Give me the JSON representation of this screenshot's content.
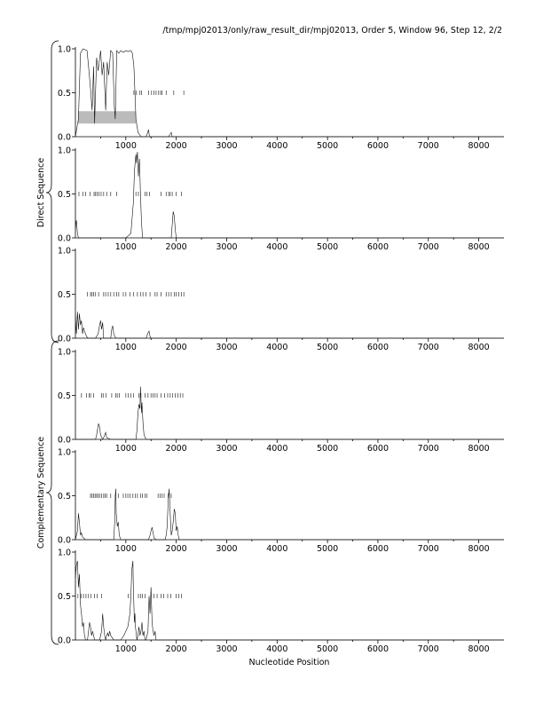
{
  "title": "/tmp/mpj02013/only/raw_result_dir/mpj02013, Order 5, Window 96, Step 12, 2/2",
  "xlabel": "Nucleotide Position",
  "group_labels": [
    "Direct Sequence",
    "Complementary Sequence"
  ],
  "chart_data": {
    "type": "line",
    "title": "/tmp/mpj02013/only/raw_result_dir/mpj02013, Order 5, Window 96, Step 12, 2/2",
    "xlabel": "Nucleotide Position",
    "xlim": [
      0,
      8500
    ],
    "ylim": [
      0,
      1
    ],
    "xticks": [
      1000,
      2000,
      3000,
      4000,
      5000,
      6000,
      7000,
      8000
    ],
    "yticks": [
      0.0,
      0.5,
      1.0
    ],
    "grid": false,
    "series": [
      {
        "group": "Direct Sequence",
        "x": [
          0,
          60,
          100,
          150,
          230,
          260,
          300,
          330,
          360,
          380,
          420,
          450,
          500,
          530,
          560,
          600,
          630,
          660,
          700,
          740,
          770,
          790,
          820,
          860,
          900,
          950,
          1000,
          1050,
          1100,
          1130,
          1160,
          1180,
          1200,
          1240,
          1300,
          1400,
          1430,
          1450,
          1470,
          1500,
          1850,
          1880,
          1900,
          1920,
          2200,
          8500
        ],
        "y": [
          0.0,
          0.2,
          0.95,
          1.0,
          0.98,
          0.8,
          0.55,
          0.3,
          0.8,
          0.15,
          0.9,
          0.75,
          0.98,
          0.7,
          0.85,
          0.3,
          0.85,
          0.7,
          0.98,
          0.95,
          0.35,
          0.2,
          0.98,
          0.95,
          0.98,
          0.96,
          0.98,
          0.97,
          0.98,
          0.95,
          0.8,
          0.5,
          0.2,
          0.05,
          0.0,
          0.0,
          0.04,
          0.08,
          0.0,
          0.0,
          0.0,
          0.03,
          0.05,
          0.0,
          0.0,
          0.0
        ],
        "stops": [
          1160,
          1210,
          1280,
          1310,
          1450,
          1510,
          1560,
          1600,
          1650,
          1690,
          1720,
          1800,
          1950,
          2150
        ],
        "gene_box": [
          50,
          1200,
          0.15,
          0.29
        ]
      },
      {
        "group": "Direct Sequence",
        "x": [
          0,
          20,
          40,
          60,
          1000,
          1100,
          1150,
          1170,
          1190,
          1200,
          1210,
          1230,
          1250,
          1270,
          1290,
          1310,
          1330,
          1400,
          1900,
          1920,
          1940,
          1960,
          1980,
          2000,
          8500
        ],
        "y": [
          0.1,
          0.2,
          0.05,
          0.0,
          0.0,
          0.05,
          0.4,
          0.75,
          0.9,
          0.95,
          0.85,
          0.98,
          0.7,
          0.9,
          0.5,
          0.2,
          0.0,
          0.0,
          0.0,
          0.15,
          0.3,
          0.25,
          0.1,
          0.0,
          0.0
        ],
        "stops": [
          70,
          150,
          200,
          290,
          370,
          400,
          430,
          470,
          510,
          560,
          620,
          700,
          820,
          1200,
          1250,
          1380,
          1420,
          1470,
          1700,
          1800,
          1850,
          1880,
          1920,
          2000,
          2100
        ]
      },
      {
        "group": "Direct Sequence",
        "x": [
          0,
          20,
          40,
          60,
          80,
          100,
          120,
          140,
          160,
          180,
          200,
          220,
          250,
          300,
          400,
          450,
          480,
          500,
          520,
          540,
          560,
          600,
          700,
          720,
          740,
          760,
          800,
          1000,
          1400,
          1420,
          1440,
          1460,
          1480,
          1500,
          8500
        ],
        "y": [
          0.25,
          0.05,
          0.3,
          0.1,
          0.28,
          0.15,
          0.2,
          0.05,
          0.12,
          0.08,
          0.05,
          0.02,
          0.0,
          0.0,
          0.0,
          0.05,
          0.15,
          0.2,
          0.1,
          0.18,
          0.0,
          0.0,
          0.0,
          0.1,
          0.14,
          0.05,
          0.0,
          0.0,
          0.0,
          0.03,
          0.06,
          0.08,
          0.02,
          0.0,
          0.0
        ],
        "stops": [
          240,
          300,
          330,
          360,
          400,
          460,
          560,
          600,
          650,
          700,
          760,
          820,
          860,
          950,
          1000,
          1080,
          1150,
          1230,
          1290,
          1340,
          1400,
          1480,
          1580,
          1620,
          1700,
          1800,
          1850,
          1900,
          1960,
          2000,
          2050,
          2100,
          2150
        ]
      },
      {
        "group": "Complementary Sequence",
        "x": [
          0,
          400,
          420,
          440,
          460,
          480,
          500,
          540,
          560,
          580,
          600,
          620,
          700,
          1000,
          1200,
          1220,
          1240,
          1260,
          1280,
          1290,
          1300,
          1310,
          1320,
          1340,
          1360,
          1400,
          8500
        ],
        "y": [
          0.0,
          0.0,
          0.05,
          0.12,
          0.18,
          0.14,
          0.05,
          0.0,
          0.02,
          0.05,
          0.08,
          0.02,
          0.0,
          0.0,
          0.0,
          0.1,
          0.3,
          0.4,
          0.35,
          0.6,
          0.45,
          0.3,
          0.42,
          0.2,
          0.05,
          0.0,
          0.0
        ],
        "stops": [
          120,
          220,
          270,
          300,
          360,
          520,
          550,
          610,
          720,
          800,
          830,
          870,
          1000,
          1050,
          1100,
          1150,
          1260,
          1300,
          1380,
          1440,
          1500,
          1540,
          1580,
          1620,
          1700,
          1770,
          1830,
          1880,
          1930,
          1980,
          2030,
          2080,
          2130
        ]
      },
      {
        "group": "Complementary Sequence",
        "x": [
          0,
          40,
          60,
          80,
          100,
          120,
          140,
          200,
          760,
          780,
          790,
          800,
          810,
          830,
          850,
          870,
          900,
          1450,
          1480,
          1500,
          1520,
          1540,
          1560,
          1600,
          1780,
          1800,
          1820,
          1840,
          1860,
          1880,
          1900,
          1920,
          1940,
          1960,
          1980,
          2000,
          2020,
          2040,
          2060,
          8500
        ],
        "y": [
          0.0,
          0.1,
          0.3,
          0.2,
          0.05,
          0.08,
          0.03,
          0.0,
          0.0,
          0.2,
          0.5,
          0.58,
          0.3,
          0.15,
          0.2,
          0.05,
          0.0,
          0.0,
          0.05,
          0.1,
          0.14,
          0.08,
          0.02,
          0.0,
          0.0,
          0.05,
          0.15,
          0.45,
          0.58,
          0.3,
          0.05,
          0.1,
          0.2,
          0.35,
          0.3,
          0.1,
          0.15,
          0.05,
          0.0,
          0.0
        ],
        "stops": [
          300,
          330,
          360,
          390,
          420,
          450,
          480,
          520,
          560,
          590,
          620,
          700,
          850,
          950,
          1000,
          1040,
          1080,
          1140,
          1190,
          1230,
          1290,
          1330,
          1380,
          1420,
          1640,
          1680,
          1720,
          1760,
          1840,
          1900
        ]
      },
      {
        "group": "Complementary Sequence",
        "x": [
          0,
          20,
          40,
          60,
          80,
          100,
          120,
          140,
          160,
          180,
          200,
          240,
          260,
          280,
          300,
          320,
          340,
          360,
          380,
          400,
          480,
          500,
          520,
          540,
          560,
          580,
          600,
          620,
          640,
          660,
          680,
          700,
          760,
          800,
          900,
          960,
          1000,
          1040,
          1080,
          1100,
          1120,
          1140,
          1150,
          1160,
          1170,
          1180,
          1190,
          1200,
          1220,
          1240,
          1260,
          1280,
          1300,
          1320,
          1340,
          1360,
          1380,
          1400,
          1420,
          1440,
          1460,
          1480,
          1500,
          1520,
          1540,
          1560,
          1580,
          1600,
          8500
        ],
        "y": [
          0.7,
          0.85,
          0.9,
          0.6,
          0.75,
          0.4,
          0.3,
          0.15,
          0.2,
          0.05,
          0.0,
          0.0,
          0.1,
          0.2,
          0.15,
          0.05,
          0.1,
          0.05,
          0.0,
          0.0,
          0.0,
          0.05,
          0.1,
          0.3,
          0.15,
          0.05,
          0.0,
          0.05,
          0.08,
          0.04,
          0.1,
          0.05,
          0.0,
          0.0,
          0.0,
          0.05,
          0.1,
          0.15,
          0.3,
          0.5,
          0.8,
          0.9,
          0.6,
          0.4,
          0.2,
          0.3,
          0.15,
          0.1,
          0.0,
          0.05,
          0.15,
          0.05,
          0.1,
          0.2,
          0.05,
          0.1,
          0.0,
          0.0,
          0.05,
          0.1,
          0.5,
          0.3,
          0.6,
          0.2,
          0.1,
          0.05,
          0.1,
          0.0,
          0.0
        ],
        "stops": [
          50,
          110,
          160,
          210,
          260,
          310,
          380,
          430,
          520,
          1050,
          1250,
          1290,
          1330,
          1380,
          1560,
          1620,
          1700,
          1750,
          1830,
          1890,
          2000,
          2050,
          2100
        ]
      }
    ]
  }
}
